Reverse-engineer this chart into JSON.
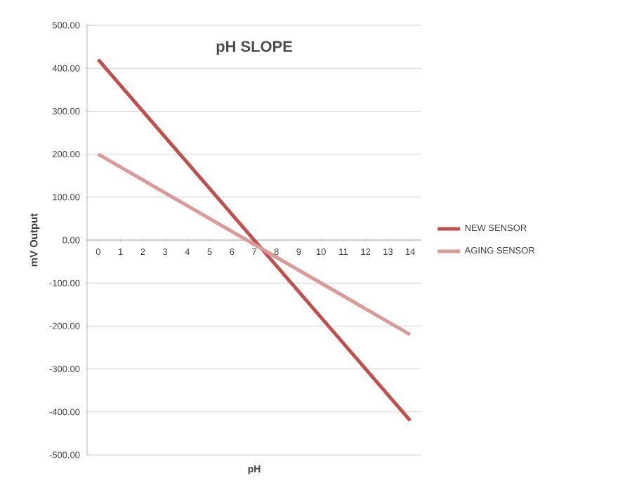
{
  "chart_data": {
    "type": "line",
    "title": "pH SLOPE",
    "xlabel": "pH",
    "ylabel": "mV Output",
    "x": [
      0,
      14
    ],
    "series": [
      {
        "name": "NEW SENSOR",
        "color": "#c0504d",
        "values": [
          420,
          -420
        ]
      },
      {
        "name": "AGING SENSOR",
        "color": "#d99a98",
        "values": [
          200,
          -220
        ]
      }
    ],
    "xlim": [
      -0.5,
      14.5
    ],
    "xticks": [
      0,
      1,
      2,
      3,
      4,
      5,
      6,
      7,
      8,
      9,
      10,
      11,
      12,
      13,
      14
    ],
    "ylim": [
      -500,
      500
    ],
    "yticks": [
      {
        "value": -500,
        "label": "-500.00"
      },
      {
        "value": -400,
        "label": "-400.00"
      },
      {
        "value": -300,
        "label": "-300.00"
      },
      {
        "value": -200,
        "label": "-200.00"
      },
      {
        "value": -100,
        "label": "-100.00"
      },
      {
        "value": 0,
        "label": "0.00"
      },
      {
        "value": 100,
        "label": "100.00"
      },
      {
        "value": 200,
        "label": "200.00"
      },
      {
        "value": 300,
        "label": "300.00"
      },
      {
        "value": 400,
        "label": "400.00"
      },
      {
        "value": 500,
        "label": "500.00"
      }
    ],
    "grid": "y",
    "legend": "right",
    "marker": "none",
    "line_style": "solid"
  }
}
